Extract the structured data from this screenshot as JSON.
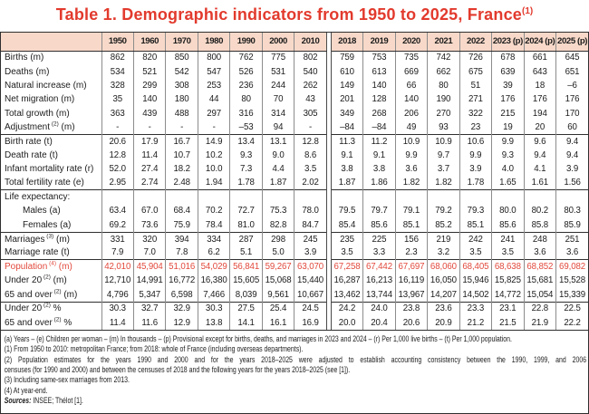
{
  "title": {
    "text": "Table 1. Demographic indicators from 1950 to 2025, France",
    "sup": "(1)"
  },
  "colors": {
    "accent_red": "#e23a2d",
    "population_red": "#e2493c",
    "header_bg": "#f8d9c9"
  },
  "chart_data": {
    "type": "table"
  },
  "table": {
    "years_left": [
      "1950",
      "1960",
      "1970",
      "1980",
      "1990",
      "2000",
      "2010"
    ],
    "years_right": [
      "2018",
      "2019",
      "2020",
      "2021",
      "2022",
      "2023 (p)",
      "2024 (p)",
      "2025 (p)"
    ],
    "rows": [
      {
        "label": "Births (m)",
        "values": [
          "862",
          "820",
          "850",
          "800",
          "762",
          "775",
          "802",
          "759",
          "753",
          "735",
          "742",
          "726",
          "678",
          "661",
          "645"
        ]
      },
      {
        "label": "Deaths (m)",
        "values": [
          "534",
          "521",
          "542",
          "547",
          "526",
          "531",
          "540",
          "610",
          "613",
          "669",
          "662",
          "675",
          "639",
          "643",
          "651"
        ]
      },
      {
        "label": "Natural increase (m)",
        "values": [
          "328",
          "299",
          "308",
          "253",
          "236",
          "244",
          "262",
          "149",
          "140",
          "66",
          "80",
          "51",
          "39",
          "18",
          "–6"
        ]
      },
      {
        "label": "Net migration (m)",
        "values": [
          "35",
          "140",
          "180",
          "44",
          "80",
          "70",
          "43",
          "201",
          "128",
          "140",
          "190",
          "271",
          "176",
          "176",
          "176"
        ]
      },
      {
        "label": "Total growth (m)",
        "values": [
          "363",
          "439",
          "488",
          "297",
          "316",
          "314",
          "305",
          "349",
          "268",
          "206",
          "270",
          "322",
          "215",
          "194",
          "170"
        ]
      },
      {
        "label": "Adjustment",
        "sup": "(2)",
        "label2": " (m)",
        "values": [
          "-",
          "-",
          "-",
          "-",
          "–53",
          "94",
          "-",
          "–84",
          "–84",
          "49",
          "93",
          "23",
          "19",
          "20",
          "60"
        ]
      },
      {
        "label": "Birth rate (t)",
        "group_start": true,
        "values": [
          "20.6",
          "17.9",
          "16.7",
          "14.9",
          "13.4",
          "13.1",
          "12.8",
          "11.3",
          "11.2",
          "10.9",
          "10.9",
          "10.6",
          "9.9",
          "9.6",
          "9.4"
        ]
      },
      {
        "label": "Death rate (t)",
        "values": [
          "12.8",
          "11.4",
          "10.7",
          "10.2",
          "9.3",
          "9.0",
          "8.6",
          "9.1",
          "9.1",
          "9.9",
          "9.7",
          "9.9",
          "9.3",
          "9.4",
          "9.4"
        ]
      },
      {
        "label": "Infant mortality rate (r)",
        "values": [
          "52.0",
          "27.4",
          "18.2",
          "10.0",
          "7.3",
          "4.4",
          "3.5",
          "3.8",
          "3.8",
          "3.6",
          "3.7",
          "3.9",
          "4.0",
          "4.1",
          "3.9"
        ]
      },
      {
        "label": "Total fertility rate (e)",
        "values": [
          "2.95",
          "2.74",
          "2.48",
          "1.94",
          "1.78",
          "1.87",
          "2.02",
          "1.87",
          "1.86",
          "1.82",
          "1.82",
          "1.78",
          "1.65",
          "1.61",
          "1.56"
        ]
      },
      {
        "label": "Life expectancy:",
        "group_start": true,
        "values": [
          "",
          "",
          "",
          "",
          "",
          "",
          "",
          "",
          "",
          "",
          "",
          "",
          "",
          "",
          ""
        ]
      },
      {
        "label": "Males (a)",
        "indent": true,
        "values": [
          "63.4",
          "67.0",
          "68.4",
          "70.2",
          "72.7",
          "75.3",
          "78.0",
          "79.5",
          "79.7",
          "79.1",
          "79.2",
          "79.3",
          "80.0",
          "80.2",
          "80.3"
        ]
      },
      {
        "label": "Females (a)",
        "indent": true,
        "values": [
          "69.2",
          "73.6",
          "75.9",
          "78.4",
          "81.0",
          "82.8",
          "84.7",
          "85.4",
          "85.6",
          "85.1",
          "85.2",
          "85.1",
          "85.6",
          "85.8",
          "85.9"
        ]
      },
      {
        "label": "Marriages",
        "sup": "(3)",
        "label2": " (m)",
        "group_start": true,
        "values": [
          "331",
          "320",
          "394",
          "334",
          "287",
          "298",
          "245",
          "235",
          "225",
          "156",
          "219",
          "242",
          "241",
          "248",
          "251"
        ]
      },
      {
        "label": "Marriage rate (t)",
        "values": [
          "7.9",
          "7.0",
          "7.8",
          "6.2",
          "5.1",
          "5.0",
          "3.9",
          "3.5",
          "3.3",
          "2.3",
          "3.2",
          "3.5",
          "3.5",
          "3.6",
          "3.6"
        ]
      },
      {
        "label": "Population",
        "sup": "(4)",
        "label2": " (m)",
        "red": true,
        "group_start": true,
        "values": [
          "42,010",
          "45,904",
          "51,016",
          "54,029",
          "56,841",
          "59,267",
          "63,070",
          "67,258",
          "67,442",
          "67,697",
          "68,060",
          "68,405",
          "68,638",
          "68,852",
          "69,082"
        ]
      },
      {
        "label": "Under 20",
        "sup": "(2)",
        "label2": " (m)",
        "values": [
          "12,710",
          "14,991",
          "16,772",
          "16,380",
          "15,605",
          "15,068",
          "15,440",
          "16,287",
          "16,213",
          "16,119",
          "16,050",
          "15,946",
          "15,825",
          "15,681",
          "15,528"
        ]
      },
      {
        "label": "65 and over",
        "sup": "(2)",
        "label2": " (m)",
        "values": [
          "4,796",
          "5,347",
          "6,598",
          "7,466",
          "8,039",
          "9,561",
          "10,667",
          "13,462",
          "13,744",
          "13,967",
          "14,207",
          "14,502",
          "14,772",
          "15,054",
          "15,339"
        ]
      },
      {
        "label": "Under 20",
        "sup": "(2)",
        "label2": " %",
        "group_start": true,
        "values": [
          "30.3",
          "32.7",
          "32.9",
          "30.3",
          "27.5",
          "25.4",
          "24.5",
          "24.2",
          "24.0",
          "23.8",
          "23.6",
          "23.3",
          "23.1",
          "22.8",
          "22.5"
        ]
      },
      {
        "label": "65 and over",
        "sup": "(2)",
        "label2": " %",
        "values": [
          "11.4",
          "11.6",
          "12.9",
          "13.8",
          "14.1",
          "16.1",
          "16.9",
          "20.0",
          "20.4",
          "20.6",
          "20.9",
          "21.2",
          "21.5",
          "21.9",
          "22.2"
        ]
      }
    ]
  },
  "footnotes": [
    {
      "lines": [
        "(a) Years – (e) Children per woman – (m) In thousands – (p) Provisional except for births, deaths, and marriages in 2023 and 2024 – (r) Per 1,000 live births – (t) Per 1,000 population."
      ]
    },
    {
      "lines": [
        "(1) From 1950 to 2010: metropolitan France; from 2018: whole of France (including overseas departments)."
      ]
    },
    {
      "lines": [
        "(2) Population estimates for the years 1990 and 2000 and for the years 2018–2025 were adjusted to establish accounting consistency between the 1990, 1999, and 2006",
        "censuses (for 1990 and 2000) and between the censuses of 2018 and the following years for the years 2018–2025 (see [1])."
      ]
    },
    {
      "lines": [
        "(3) Including same-sex marriages from 2013."
      ]
    },
    {
      "lines": [
        "(4) At year-end."
      ]
    }
  ],
  "sources": {
    "label": "Sources:",
    "text": " INSEE; Thélot [1]."
  }
}
